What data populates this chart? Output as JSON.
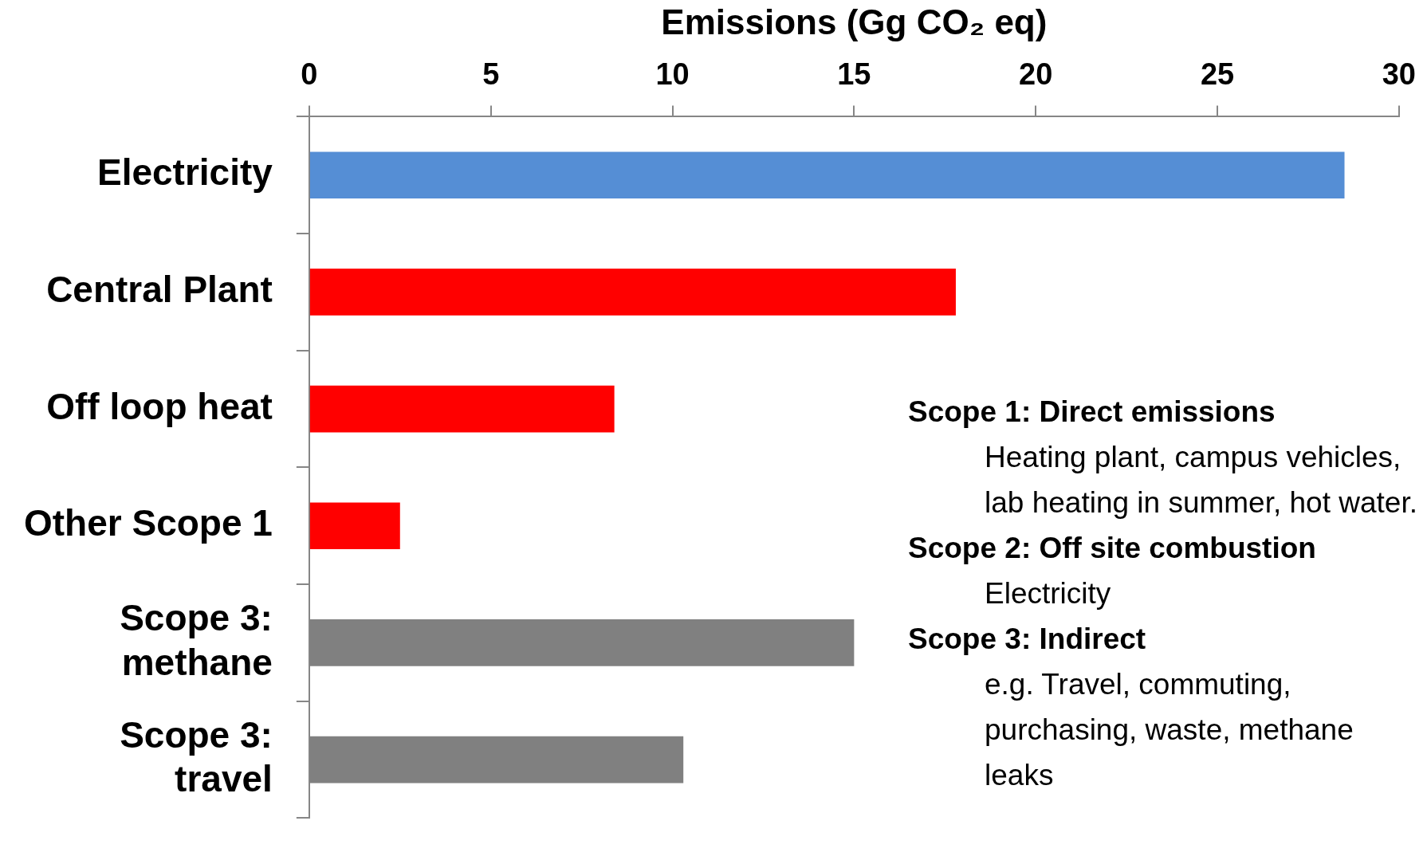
{
  "chart_data": {
    "type": "bar",
    "orientation": "horizontal",
    "xlabel": "Emissions (Gg CO₂ eq)",
    "categories": [
      "Electricity",
      "Central Plant",
      "Off loop heat",
      "Other Scope 1",
      "Scope 3: methane",
      "Scope 3: travel"
    ],
    "values": [
      28.5,
      17.8,
      8.4,
      2.5,
      15.0,
      10.3
    ],
    "colors": [
      "#558ed5",
      "#ff0000",
      "#ff0000",
      "#ff0000",
      "#808080",
      "#808080"
    ],
    "xlim": [
      0,
      30
    ],
    "xticks": [
      0,
      5,
      10,
      15,
      20,
      25,
      30
    ],
    "grid": false,
    "legend": false,
    "annotations": [
      "Scope 1: Direct emissions",
      "Heating plant, campus vehicles, lab heating in summer, hot water.",
      "Scope 2: Off site combustion",
      "Electricity",
      "Scope 3: Indirect",
      "e.g. Travel, commuting, purchasing, waste, methane leaks"
    ]
  }
}
